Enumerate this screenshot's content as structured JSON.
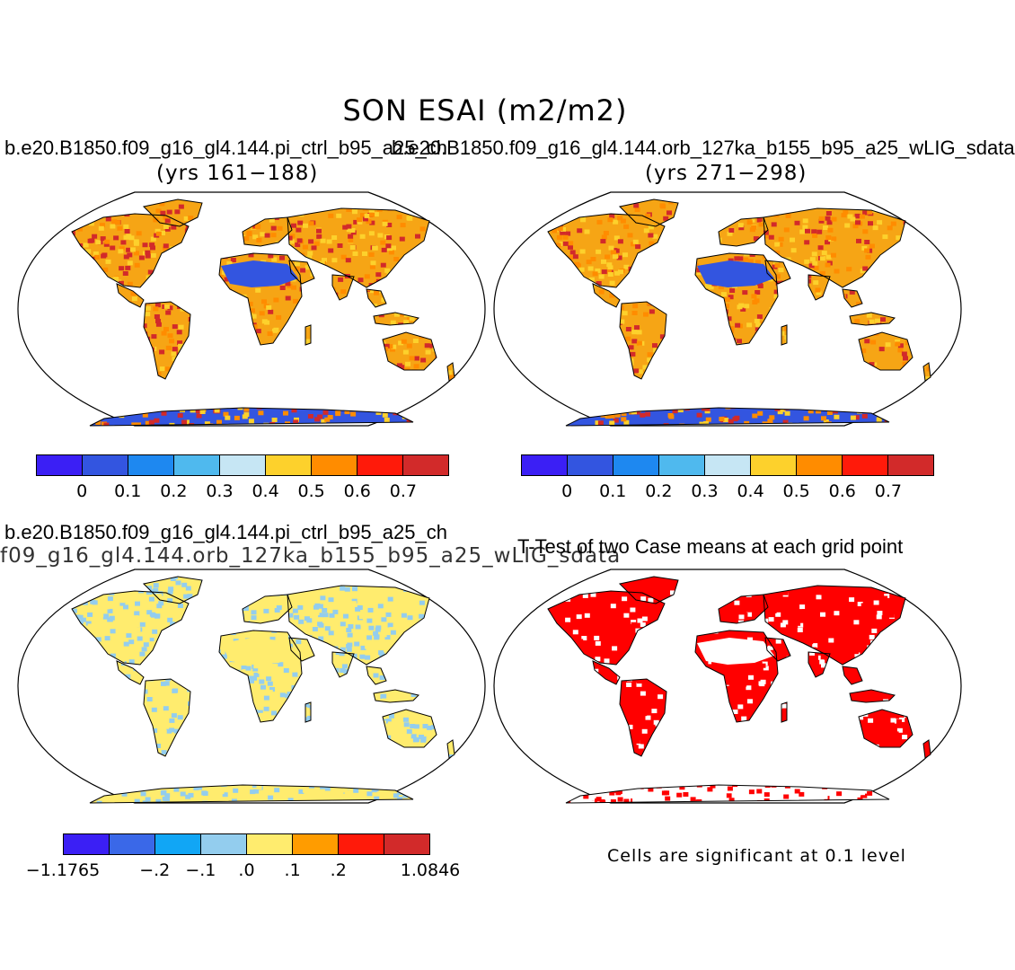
{
  "figure": {
    "title": "SON ESAI (m2/m2)"
  },
  "panels": [
    {
      "id": "ctrl",
      "case_label": "b.e20.B1850.f09_g16_gl4.144.pi_ctrl_b95_a25_ch",
      "years": "(yrs 161−188)",
      "colorbar": {
        "colors": [
          "#3b1ff5",
          "#3355e0",
          "#1e88f0",
          "#4fb9ee",
          "#c6e6f4",
          "#fdd12c",
          "#ff8c00",
          "#ff1a0a",
          "#d22a2a"
        ],
        "ticks": [
          "0",
          "0.1",
          "0.2",
          "0.3",
          "0.4",
          "0.5",
          "0.6",
          "0.7"
        ]
      },
      "fill": {
        "land": "#f6a515",
        "pattern": [
          "#ff8c00",
          "#d22a2a",
          "#fdd12c"
        ],
        "desert": "#3355e0",
        "antarctica": "#3355e0"
      }
    },
    {
      "id": "orb",
      "case_label": "b.e20.B1850.f09_g16_gl4.144.orb_127ka_b155_b95_a25_wLIG_sdata",
      "years": "(yrs 271−298)",
      "colorbar": {
        "colors": [
          "#3b1ff5",
          "#3355e0",
          "#1e88f0",
          "#4fb9ee",
          "#c6e6f4",
          "#fdd12c",
          "#ff8c00",
          "#ff1a0a",
          "#d22a2a"
        ],
        "ticks": [
          "0",
          "0.1",
          "0.2",
          "0.3",
          "0.4",
          "0.5",
          "0.6",
          "0.7"
        ]
      },
      "fill": {
        "land": "#f6a515",
        "pattern": [
          "#ff8c00",
          "#d22a2a",
          "#fdd12c"
        ],
        "desert": "#3355e0",
        "antarctica": "#3355e0"
      }
    },
    {
      "id": "diff",
      "case_label": "b.e20.B1850.f09_g16_gl4.144.pi_ctrl_b95_a25_ch",
      "case_label_2": "f09_g16_gl4.144.orb_127ka_b155_b95_a25_wLIG_sdata",
      "colorbar": {
        "colors": [
          "#3b1ff5",
          "#3a68e8",
          "#11a6f5",
          "#93cdee",
          "#ffec6e",
          "#ff9c00",
          "#ff1a0a",
          "#d22a2a"
        ],
        "ticks": [
          "−1.1765",
          "−.2",
          "−.1",
          ".0",
          ".1",
          ".2",
          "1.0846"
        ]
      },
      "fill": {
        "land": "#ffec6e",
        "pattern": [
          "#93cdee",
          "#ffec6e",
          "#93cdee"
        ],
        "desert": "#ffec6e",
        "antarctica": "#ffec6e"
      }
    },
    {
      "id": "ttest",
      "case_label": "T-Test of two Case means at each grid point",
      "note": "Cells are significant at 0.1 level",
      "fill": {
        "land": "#ff0000",
        "pattern": [
          "#ff0000",
          "#ffffff",
          "#ff0000"
        ],
        "desert": "#ffffff",
        "antarctica": "#ffffff"
      }
    }
  ]
}
